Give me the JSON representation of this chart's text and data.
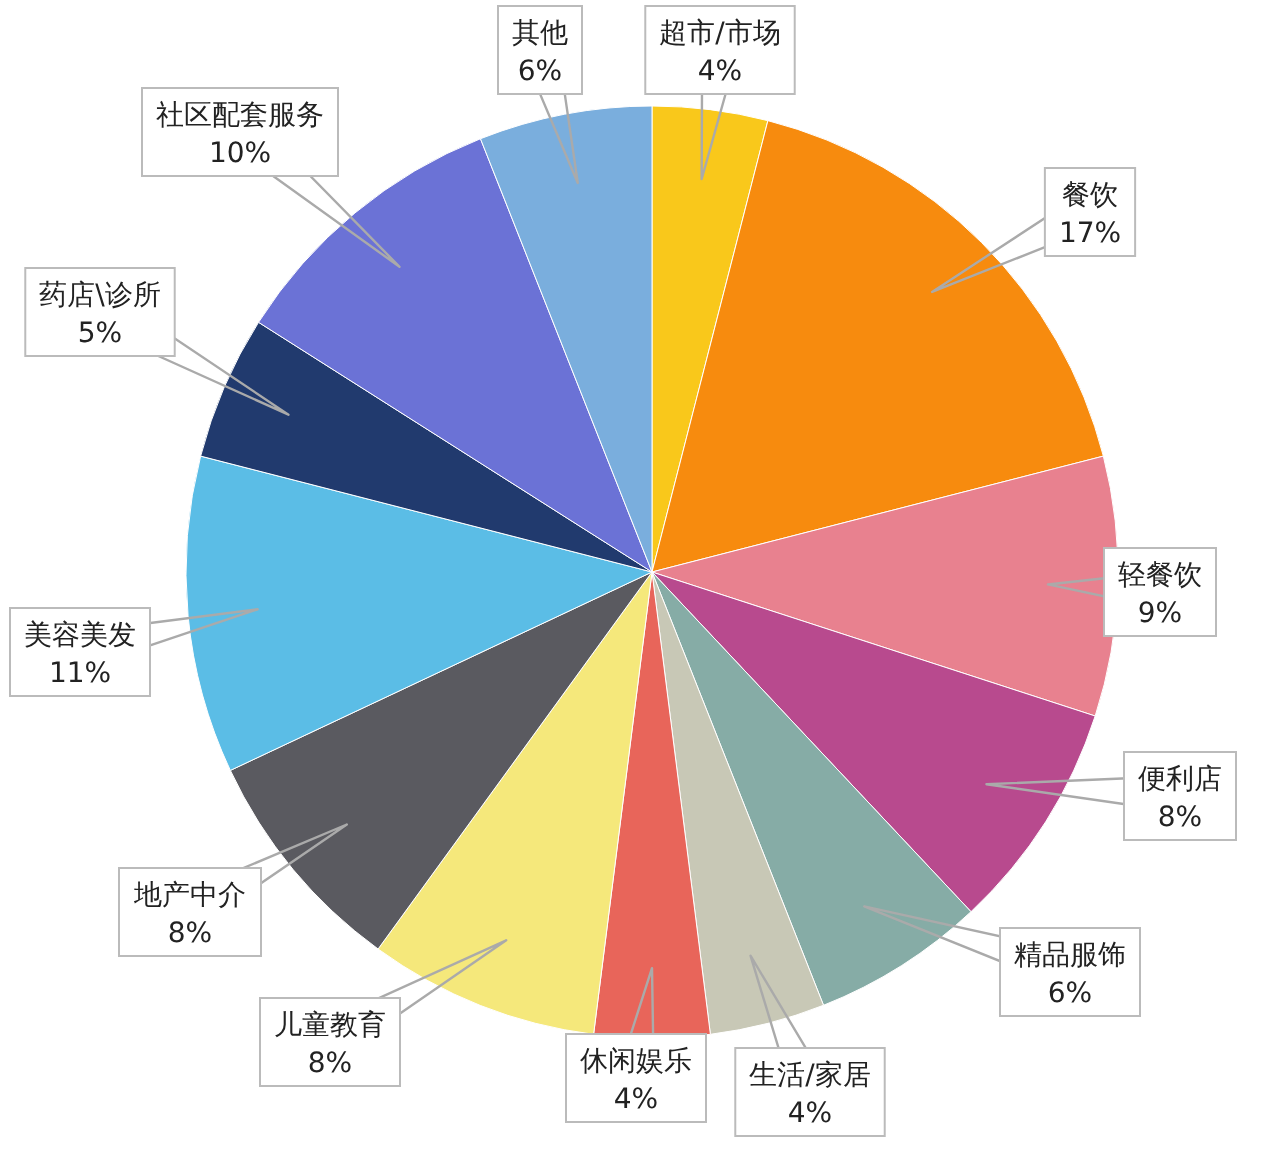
{
  "chart_data": {
    "type": "pie",
    "categories": [
      "超市/市场",
      "餐饮",
      "轻餐饮",
      "便利店",
      "精品服饰",
      "生活/家居",
      "休闲娱乐",
      "儿童教育",
      "地产中介",
      "美容美发",
      "药店\\诊所",
      "社区配套服务",
      "其他"
    ],
    "values": [
      4,
      17,
      9,
      8,
      6,
      4,
      4,
      8,
      8,
      11,
      5,
      10,
      6
    ],
    "value_labels": [
      "4%",
      "17%",
      "9%",
      "8%",
      "6%",
      "4%",
      "4%",
      "8%",
      "8%",
      "11%",
      "5%",
      "10%",
      "6%"
    ],
    "colors": [
      "#f9c81b",
      "#f78b0e",
      "#e8818f",
      "#b84a8e",
      "#86aca6",
      "#c8c8b6",
      "#e8655a",
      "#f5e87b",
      "#5a5a60",
      "#5bbde6",
      "#213a6e",
      "#6b72d6",
      "#7aaedd"
    ]
  }
}
